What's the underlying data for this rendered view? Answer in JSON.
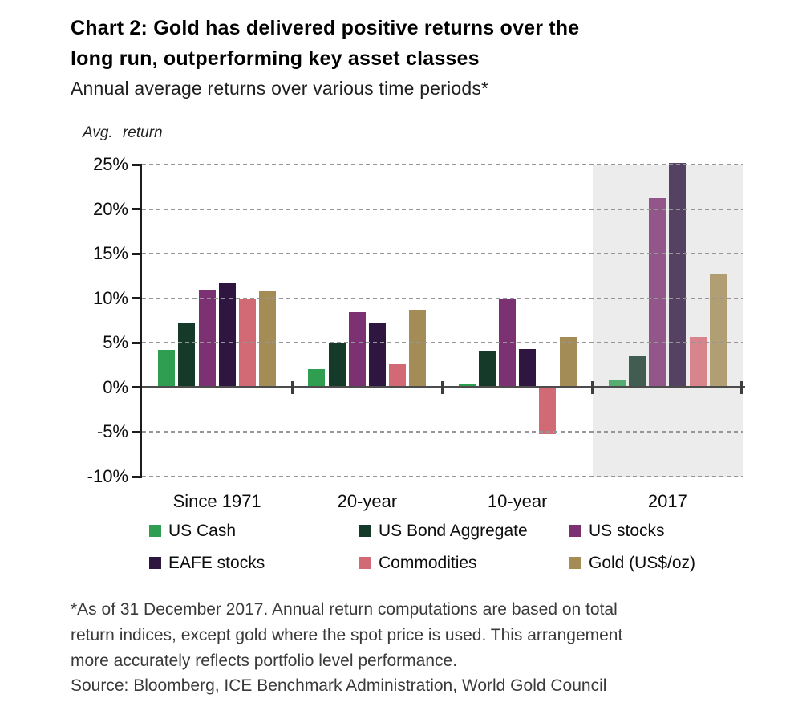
{
  "header": {
    "title_line1": "Chart 2: Gold has delivered positive returns over the",
    "title_line2": "long run, outperforming key asset classes",
    "subtitle": "Annual average returns over various time periods*"
  },
  "chart_data": {
    "type": "bar",
    "title": "Chart 2: Gold has delivered positive returns over the long run, outperforming key asset classes",
    "subtitle": "Annual average returns over various time periods*",
    "ylabel": "Avg. return",
    "unit": "%",
    "ylim": [
      -10,
      25
    ],
    "yticks": [
      25,
      20,
      15,
      10,
      5,
      0,
      -5,
      -10
    ],
    "ytick_labels": [
      "25%",
      "20%",
      "15%",
      "10%",
      "5%",
      "0%",
      "-5%",
      "-10%"
    ],
    "grid": "horizontal dashed gridlines drawn over bars",
    "legend_position": "bottom",
    "categories": [
      "Since 1971",
      "20-year",
      "10-year",
      "2017"
    ],
    "highlighted_category": "2017",
    "highlight_color": "#ececec",
    "series": [
      {
        "name": "US Cash",
        "color": "#2f9e50",
        "values": [
          4.2,
          2.1,
          0.4,
          0.9
        ]
      },
      {
        "name": "US Bond Aggregate",
        "color": "#163a2a",
        "values": [
          7.3,
          5.0,
          4.0,
          3.5
        ]
      },
      {
        "name": "US stocks",
        "color": "#7c3173",
        "values": [
          10.9,
          8.4,
          9.9,
          21.2
        ]
      },
      {
        "name": "EAFE stocks",
        "color": "#2f1640",
        "values": [
          11.7,
          7.3,
          4.3,
          25.2
        ]
      },
      {
        "name": "Commodities",
        "color": "#d26a76",
        "values": [
          9.9,
          2.7,
          -5.2,
          5.7
        ]
      },
      {
        "name": "Gold (US$/oz)",
        "color": "#a38c55",
        "values": [
          10.8,
          8.7,
          5.7,
          12.7
        ]
      }
    ]
  },
  "footnote": {
    "lines": [
      "*As of 31 December 2017. Annual return computations are based on total",
      "return indices, except gold where the spot price is used. This arrangement",
      "more accurately reflects portfolio level performance."
    ]
  },
  "source": "Source: Bloomberg, ICE Benchmark Administration, World Gold Council"
}
